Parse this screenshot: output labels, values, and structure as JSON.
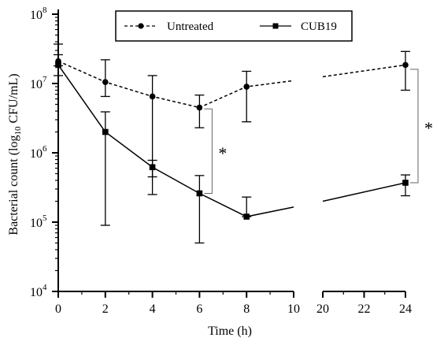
{
  "chart_data": {
    "type": "line",
    "xlabel": "Time (h)",
    "ylabel_prefix": "Bacterial count (log",
    "ylabel_subscript": "10",
    "ylabel_suffix": " CFU/mL)",
    "y_scale": "log",
    "ylim": [
      10000,
      100000000
    ],
    "y_ticks": [
      {
        "base": "10",
        "exp": "4"
      },
      {
        "base": "10",
        "exp": "5"
      },
      {
        "base": "10",
        "exp": "6"
      },
      {
        "base": "10",
        "exp": "7"
      },
      {
        "base": "10",
        "exp": "8"
      }
    ],
    "x_axis_segments": [
      {
        "range": [
          0,
          10
        ],
        "ticks": [
          "0",
          "2",
          "4",
          "6",
          "8",
          "10"
        ]
      },
      {
        "range": [
          20,
          24
        ],
        "ticks": [
          "20",
          "22",
          "24"
        ]
      }
    ],
    "legend_position": "top",
    "series": [
      {
        "name": "Untreated",
        "line_style": "dashed",
        "marker": "circle",
        "x": [
          0,
          2,
          4,
          6,
          8,
          24
        ],
        "y": [
          21000000,
          10500000,
          6500000,
          4500000,
          9000000,
          18500000
        ],
        "err_low": [
          18000000,
          6500000,
          450000,
          2300000,
          2800000,
          8000000
        ],
        "err_high": [
          26000000,
          22000000,
          13000000,
          6800000,
          15000000,
          29000000
        ],
        "break_line": {
          "left_end_y": 11000000,
          "right_start_y": 12500000
        }
      },
      {
        "name": "CUB19",
        "line_style": "solid",
        "marker": "square",
        "x": [
          0,
          2,
          4,
          6,
          8,
          24
        ],
        "y": [
          18500000,
          2000000,
          620000,
          260000,
          120000,
          370000
        ],
        "err_low": [
          13000000,
          90000,
          250000,
          50000,
          120000,
          240000
        ],
        "err_high": [
          37000000,
          3900000,
          780000,
          470000,
          230000,
          480000
        ],
        "break_line": {
          "left_end_y": 165000,
          "right_start_y": 200000
        }
      }
    ],
    "annotations": [
      {
        "text": "*",
        "x": 6,
        "y_from": 4300000,
        "y_to": 260000
      },
      {
        "text": "*",
        "x": 24,
        "y_from": 16000000,
        "y_to": 370000
      }
    ]
  }
}
